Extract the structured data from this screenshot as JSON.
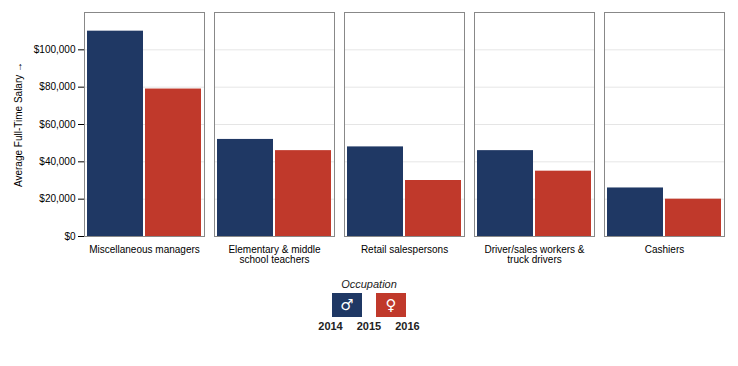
{
  "chart_data": {
    "type": "bar",
    "categories": [
      "Miscellaneous managers",
      "Elementary & middle\nschool teachers",
      "Retail salespersons",
      "Driver/sales workers &\ntruck drivers",
      "Cashiers"
    ],
    "series": [
      {
        "name": "♂",
        "color": "#1F3864",
        "values": [
          110000,
          52000,
          48000,
          46000,
          26000
        ]
      },
      {
        "name": "♀",
        "color": "#C0392B",
        "values": [
          79000,
          46000,
          30000,
          35000,
          20000
        ]
      }
    ],
    "ylabel": "Average Full-Time Salary",
    "ylim": [
      0,
      120000
    ],
    "yticks": [
      {
        "value": 0,
        "label": "$0"
      },
      {
        "value": 20000,
        "label": "$20,000"
      },
      {
        "value": 40000,
        "label": "$40,000"
      },
      {
        "value": 60000,
        "label": "$60,000"
      },
      {
        "value": 80000,
        "label": "$80,000"
      },
      {
        "value": 100000,
        "label": "$100,000"
      }
    ],
    "grid": true,
    "legend": "bottom",
    "legend_title": "Occupation",
    "annotations": [
      "2014",
      "2015",
      "2016"
    ]
  }
}
